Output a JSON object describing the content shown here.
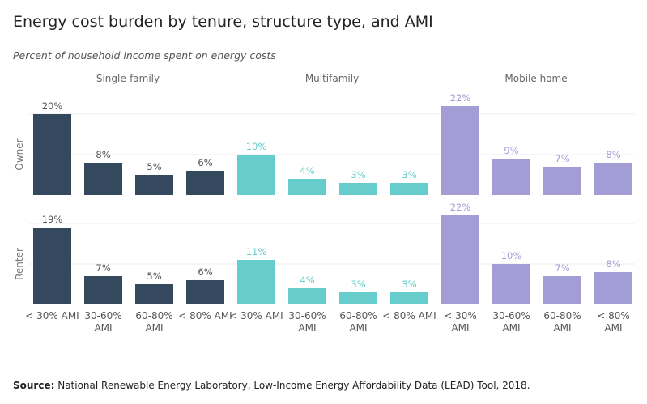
{
  "title": "Energy cost burden by tenure, structure type, and AMI",
  "subtitle": "Percent of household income spent on energy costs",
  "source": {
    "label": "Source:",
    "text": " National Renewable Energy Laboratory, Low-Income Energy Affordability Data (LEAD) Tool, 2018."
  },
  "colors": {
    "single_family": "#34495e",
    "multifamily": "#66cccc",
    "mobile_home": "#a29dd4"
  },
  "chart_data": {
    "type": "bar",
    "unit": "%",
    "ylim": [
      0,
      22
    ],
    "grid": true,
    "column_groups": [
      {
        "name": "Single-family",
        "color_key": "single_family",
        "categories": [
          "< 30% AMI",
          "30-60% AMI",
          "60-80% AMI",
          "< 80% AMI"
        ]
      },
      {
        "name": "Multifamily",
        "color_key": "multifamily",
        "categories": [
          "< 30% AMI",
          "30-60% AMI",
          "60-80% AMI",
          "< 80% AMI"
        ]
      },
      {
        "name": "Mobile home",
        "color_key": "mobile_home",
        "categories": [
          "< 30% AMI",
          "30-60% AMI",
          "60-80% AMI",
          "< 80% AMI"
        ]
      }
    ],
    "x_tick_labels": [
      [
        "< 30% AMI"
      ],
      [
        "30-60%",
        "AMI"
      ],
      [
        "60-80%",
        "AMI"
      ],
      [
        "< 80% AMI"
      ],
      [
        "< 30% AMI"
      ],
      [
        "30-60%",
        "AMI"
      ],
      [
        "60-80%",
        "AMI"
      ],
      [
        "< 80% AMI"
      ],
      [
        "< 30%",
        "AMI"
      ],
      [
        "30-60%",
        "AMI"
      ],
      [
        "60-80%",
        "AMI"
      ],
      [
        "< 80%",
        "AMI"
      ]
    ],
    "rows": [
      {
        "name": "Owner",
        "values": [
          20,
          8,
          5,
          6,
          10,
          4,
          3,
          3,
          22,
          9,
          7,
          8
        ]
      },
      {
        "name": "Renter",
        "values": [
          19,
          7,
          5,
          6,
          11,
          4,
          3,
          3,
          22,
          10,
          7,
          8
        ]
      }
    ]
  }
}
